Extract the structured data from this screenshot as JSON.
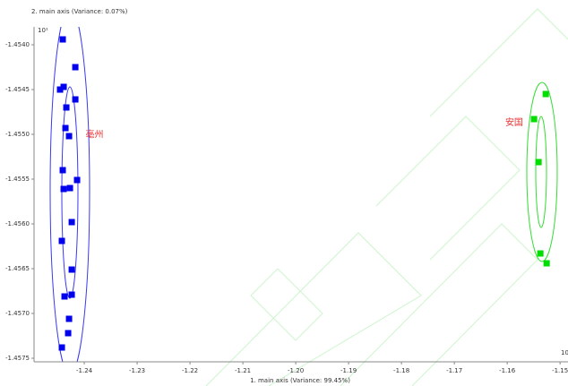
{
  "chart_data": {
    "type": "scatter",
    "y_axis_label": "2. main axis (Variance: 0.07%)",
    "x_axis_label": "1. main axis (Variance: 99.45%)",
    "y_exponent": "10¹",
    "x_exponent": "10",
    "xlim": [
      -1.2495,
      -1.1485
    ],
    "xticks": [
      -1.24,
      -1.23,
      -1.22,
      -1.21,
      {
        "value": -1.2,
        "label": "-1.20"
      },
      -1.19,
      -1.18,
      -1.17,
      -1.16,
      -1.15
    ],
    "ylim": [
      -1.45754,
      -1.4538
    ],
    "yticks": [
      {
        "value": -1.454,
        "label": "-1.4540"
      },
      -1.4545,
      {
        "value": -1.455,
        "label": "-1.4550"
      },
      -1.4555,
      {
        "value": -1.456,
        "label": "-1.4560"
      },
      -1.4565,
      {
        "value": -1.457,
        "label": "-1.4570"
      },
      -1.4575
    ],
    "series": [
      {
        "name": "亳州",
        "color": "#0000ee",
        "x": [
          -1.24407,
          -1.24169,
          -1.24458,
          -1.2439,
          -1.24169,
          -1.24339,
          -1.24356,
          -1.24288,
          -1.24407,
          -1.2439,
          -1.24271,
          -1.24136,
          -1.24237,
          -1.24424,
          -1.24237,
          -1.24373,
          -1.24237,
          -1.24288,
          -1.24305,
          -1.24424
        ],
        "values": [
          -1.45394,
          -1.45425,
          -1.4545,
          -1.45447,
          -1.45461,
          -1.4547,
          -1.45493,
          -1.45502,
          -1.4554,
          -1.45561,
          -1.4556,
          -1.45551,
          -1.45598,
          -1.45619,
          -1.45651,
          -1.45681,
          -1.45679,
          -1.45706,
          -1.45722,
          -1.45738
        ]
      },
      {
        "name": "安国",
        "color": "#00dd00",
        "x": [
          -1.15492,
          -1.15271,
          -1.15407,
          -1.15373,
          -1.15254
        ],
        "values": [
          -1.45483,
          -1.45455,
          -1.45531,
          -1.45633,
          -1.45644
        ]
      }
    ]
  }
}
